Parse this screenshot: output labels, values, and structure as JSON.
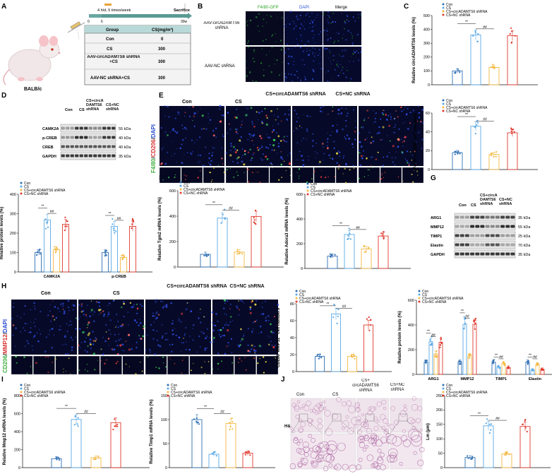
{
  "panels": {
    "A": {
      "letter": "A",
      "mouse_label": "BALB/c",
      "timeline": {
        "exposure": "4 h/d,  5 times/week",
        "sacrifice": "Sacrifice",
        "ticks": [
          "0",
          "6",
          "30w"
        ]
      },
      "table": {
        "headers": [
          "Group",
          "CS(mg/m³)"
        ],
        "rows": [
          [
            "Con",
            "0"
          ],
          [
            "CS",
            "300"
          ],
          [
            "AAV-circADAMTS6 shRNA +CS",
            "300"
          ],
          [
            "AAV-NC shRNA+CS",
            "300"
          ]
        ]
      }
    },
    "B": {
      "letter": "B",
      "cols": [
        "F4/80-GFP",
        "DAPI",
        "Merge"
      ],
      "rows": [
        "AAV-circADAMTS6 shRNA",
        "AAV-NC shRNA"
      ]
    },
    "C": {
      "letter": "C",
      "ylabel": "Relative circADAMTS6 levels (%)"
    },
    "D": {
      "letter": "D",
      "header": [
        "Con",
        "CS",
        "CS+circA DAMTS6 shRNA",
        "CS+NC shRNA"
      ],
      "bands": [
        {
          "name": "CAMK2A",
          "kda": "55 kDa"
        },
        {
          "name": "p-CREB",
          "kda": "40 kDa"
        },
        {
          "name": "CREB",
          "kda": "40 kDa"
        },
        {
          "name": "GAPDH",
          "kda": "35 kDa"
        }
      ],
      "ylabel": "Relative protein levels (%)"
    },
    "E": {
      "letter": "E",
      "cols": [
        "Con",
        "CS",
        "CS+circADAMTS6 shRNA",
        "CS+NC shRNA"
      ],
      "side_label": [
        "F4/80",
        "/",
        "CD206",
        "/",
        "DAPI"
      ],
      "ylabel": "F4/80⁺CD206⁺ cell numbers"
    },
    "F": {
      "letter": "F",
      "ylabel1": "Relative Tgm2 mRNA levels (%)",
      "ylabel2": "Relative Adora3 mRNA levels (%)"
    },
    "G": {
      "letter": "G",
      "header": [
        "Con",
        "CS",
        "CS+circA DAMTS6 shRNA",
        "CS+NC shRNA"
      ],
      "bands": [
        {
          "name": "ARG1",
          "kda": "35 kDa"
        },
        {
          "name": "MMP12",
          "kda": "55 kDa"
        },
        {
          "name": "TIMP1",
          "kda": "25 kDa"
        },
        {
          "name": "Elastin",
          "kda": "70 kDa"
        },
        {
          "name": "GAPDH",
          "kda": "35 kDa"
        }
      ]
    },
    "H": {
      "letter": "H",
      "cols": [
        "Con",
        "CS",
        "CS+circADAMTS6 shRNA",
        "CS+NC shRNA"
      ],
      "side_label": [
        "CD206",
        "/",
        "MMP12",
        "/",
        "DAPI"
      ],
      "ylabel1": "CD206⁺MMP12⁺ cell numbers",
      "ylabel2": "Relative protein levels (%)"
    },
    "I": {
      "letter": "I",
      "ylabel1": "Relative Mmp12 mRNA levels (%)",
      "ylabel2": "Relative Timp1 mRNA levels (%)"
    },
    "J": {
      "letter": "J",
      "cols": [
        "Con",
        "CS",
        "CS+ circADAMTS6 shRNA",
        "CS+NC shRNA"
      ],
      "row_label": "H&E",
      "ylabel": "Lm (μm)"
    }
  },
  "legend": {
    "entries": [
      "Con",
      "CS",
      "CS+circADAMTS6 shRNA",
      "CS+NC shRNA"
    ],
    "colors": [
      "#2f6fb3",
      "#5aa9e6",
      "#f4b942",
      "#e03a2f"
    ]
  },
  "sig": {
    "two_star": "**",
    "hash": "##"
  },
  "chart_data": [
    {
      "id": "C",
      "type": "bar",
      "title": "",
      "ylabel": "Relative circADAMTS6 levels (%)",
      "ylim": [
        0,
        500
      ],
      "yticks": [
        "0",
        "100",
        "200",
        "300",
        "400",
        "500"
      ],
      "categories": [
        ""
      ],
      "series": [
        {
          "name": "Con",
          "values": [
            100
          ]
        },
        {
          "name": "CS",
          "values": [
            360
          ]
        },
        {
          "name": "CS+circADAMTS6 shRNA",
          "values": [
            125
          ]
        },
        {
          "name": "CS+NC shRNA",
          "values": [
            355
          ]
        }
      ]
    },
    {
      "id": "E",
      "type": "bar",
      "ylabel": "F4/80⁺CD206⁺ cell numbers",
      "ylim": [
        0,
        60
      ],
      "yticks": [
        "0",
        "20",
        "40",
        "60"
      ],
      "categories": [
        ""
      ],
      "series": [
        {
          "name": "Con",
          "values": [
            18
          ]
        },
        {
          "name": "CS",
          "values": [
            46
          ]
        },
        {
          "name": "CS+circADAMTS6 shRNA",
          "values": [
            16
          ]
        },
        {
          "name": "CS+NC shRNA",
          "values": [
            39
          ]
        }
      ]
    },
    {
      "id": "D",
      "type": "bar",
      "ylabel": "Relative protein levels (%)",
      "ylim": [
        0,
        400
      ],
      "yticks": [
        "0",
        "100",
        "200",
        "300",
        "400"
      ],
      "categories": [
        "CAMK2A",
        "p-CREB"
      ],
      "series": [
        {
          "name": "Con",
          "values": [
            100,
            100
          ]
        },
        {
          "name": "CS",
          "values": [
            268,
            235
          ]
        },
        {
          "name": "CS+circADAMTS6 shRNA",
          "values": [
            115,
            75
          ]
        },
        {
          "name": "CS+NC shRNA",
          "values": [
            245,
            235
          ]
        }
      ]
    },
    {
      "id": "F1",
      "type": "bar",
      "ylabel": "Relative Tgm2 mRNA levels (%)",
      "ylim": [
        0,
        600
      ],
      "yticks": [
        "0",
        "200",
        "400",
        "600"
      ],
      "categories": [
        ""
      ],
      "series": [
        {
          "name": "Con",
          "values": [
            100
          ]
        },
        {
          "name": "CS",
          "values": [
            385
          ]
        },
        {
          "name": "CS+circADAMTS6 shRNA",
          "values": [
            118
          ]
        },
        {
          "name": "CS+NC shRNA",
          "values": [
            398
          ]
        }
      ]
    },
    {
      "id": "F2",
      "type": "bar",
      "ylabel": "Relative Adora3 mRNA levels (%)",
      "ylim": [
        0,
        600
      ],
      "yticks": [
        "0",
        "200",
        "400",
        "600"
      ],
      "categories": [
        ""
      ],
      "series": [
        {
          "name": "Con",
          "values": [
            100
          ]
        },
        {
          "name": "CS",
          "values": [
            275
          ]
        },
        {
          "name": "CS+circADAMTS6 shRNA",
          "values": [
            158
          ]
        },
        {
          "name": "CS+NC shRNA",
          "values": [
            262
          ]
        }
      ]
    },
    {
      "id": "H1",
      "type": "bar",
      "ylabel": "CD206⁺MMP12⁺ cell numbers",
      "ylim": [
        0,
        80
      ],
      "yticks": [
        "0",
        "20",
        "40",
        "60",
        "80"
      ],
      "categories": [
        ""
      ],
      "series": [
        {
          "name": "Con",
          "values": [
            18
          ]
        },
        {
          "name": "CS",
          "values": [
            68
          ]
        },
        {
          "name": "CS+circADAMTS6 shRNA",
          "values": [
            18
          ]
        },
        {
          "name": "CS+NC shRNA",
          "values": [
            55
          ]
        }
      ]
    },
    {
      "id": "H2",
      "type": "bar",
      "ylabel": "Relative protein levels (%)",
      "ylim": [
        0,
        600
      ],
      "yticks": [
        "0",
        "200",
        "400",
        "600"
      ],
      "categories": [
        "ARG1",
        "MMP12",
        "TIMP1",
        "Elastin"
      ],
      "series": [
        {
          "name": "Con",
          "values": [
            100,
            100,
            100,
            100
          ]
        },
        {
          "name": "CS",
          "values": [
            265,
            405,
            60,
            35
          ]
        },
        {
          "name": "CS+circADAMTS6 shRNA",
          "values": [
            165,
            150,
            90,
            80
          ]
        },
        {
          "name": "CS+NC shRNA",
          "values": [
            260,
            405,
            55,
            40
          ]
        }
      ]
    },
    {
      "id": "I1",
      "type": "bar",
      "ylabel": "Relative Mmp12 mRNA levels (%)",
      "ylim": [
        0,
        800
      ],
      "yticks": [
        "0",
        "200",
        "400",
        "600",
        "800"
      ],
      "categories": [
        ""
      ],
      "series": [
        {
          "name": "Con",
          "values": [
            100
          ]
        },
        {
          "name": "CS",
          "values": [
            535
          ]
        },
        {
          "name": "CS+circADAMTS6 shRNA",
          "values": [
            110
          ]
        },
        {
          "name": "CS+NC shRNA",
          "values": [
            500
          ]
        }
      ]
    },
    {
      "id": "I2",
      "type": "bar",
      "ylabel": "Relative Timp1 mRNA levels (%)",
      "ylim": [
        0,
        150
      ],
      "yticks": [
        "0",
        "50",
        "100",
        "150"
      ],
      "categories": [
        ""
      ],
      "series": [
        {
          "name": "Con",
          "values": [
            100
          ]
        },
        {
          "name": "CS",
          "values": [
            28
          ]
        },
        {
          "name": "CS+circADAMTS6 shRNA",
          "values": [
            92
          ]
        },
        {
          "name": "CS+NC shRNA",
          "values": [
            30
          ]
        }
      ]
    },
    {
      "id": "J",
      "type": "bar",
      "ylabel": "Lm (μm)",
      "ylim": [
        0,
        250
      ],
      "yticks": [
        "0",
        "50",
        "100",
        "150",
        "200",
        "250"
      ],
      "categories": [
        ""
      ],
      "series": [
        {
          "name": "Con",
          "values": [
            35
          ]
        },
        {
          "name": "CS",
          "values": [
            145
          ]
        },
        {
          "name": "CS+circADAMTS6 shRNA",
          "values": [
            48
          ]
        },
        {
          "name": "CS+NC shRNA",
          "values": [
            143
          ]
        }
      ]
    }
  ]
}
